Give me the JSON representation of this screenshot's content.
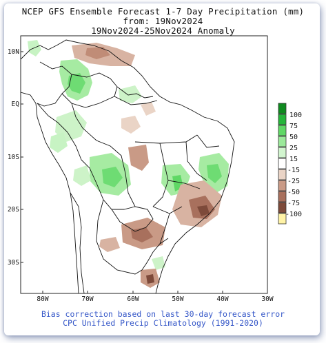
{
  "header": {
    "line1": "NCEP GFS Ensemble Forecast 1-7 Day Precipitation (mm)",
    "line2": "from: 19Nov2024",
    "line3": "19Nov2024-25Nov2024 Anomaly"
  },
  "footer": {
    "line1": "Bias correction based on last 30-day forecast error",
    "line2": "CPC Unified Precip Climatology (1991-2020)"
  },
  "map": {
    "region": "South America",
    "lon_range": [
      -85,
      -30
    ],
    "lat_range": [
      -35,
      12
    ],
    "lat_labels": [
      {
        "lat": 10,
        "text": "10N"
      },
      {
        "lat": 0,
        "text": "EQ"
      },
      {
        "lat": -10,
        "text": "10S"
      },
      {
        "lat": -20,
        "text": "20S"
      },
      {
        "lat": -30,
        "text": "30S"
      }
    ],
    "lon_labels": [
      {
        "lon": -80,
        "text": "80W"
      },
      {
        "lon": -70,
        "text": "70W"
      },
      {
        "lon": -60,
        "text": "60W"
      },
      {
        "lon": -50,
        "text": "50W"
      },
      {
        "lon": -40,
        "text": "40W"
      },
      {
        "lon": -30,
        "text": "30W"
      }
    ]
  },
  "legend": {
    "boxes": [
      {
        "color": "#0f8a1f"
      },
      {
        "color": "#25b53a"
      },
      {
        "color": "#5fd865"
      },
      {
        "color": "#9be99a"
      },
      {
        "color": "#d2f5cf"
      },
      {
        "color": "#ffffff"
      },
      {
        "color": "#ead4c6"
      },
      {
        "color": "#c99a86"
      },
      {
        "color": "#a8705d"
      },
      {
        "color": "#7d4a3a"
      },
      {
        "color": "#fff3a6"
      }
    ],
    "labels": [
      "100",
      "75",
      "50",
      "25",
      "15",
      "-15",
      "-25",
      "-50",
      "-75",
      "-100"
    ]
  }
}
